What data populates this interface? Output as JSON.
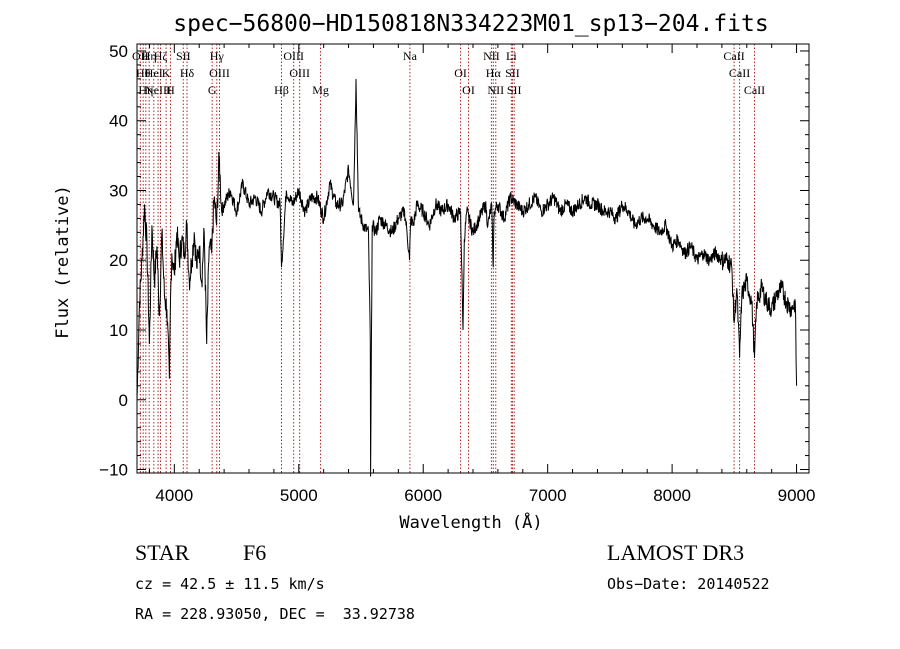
{
  "chart_data": {
    "type": "line",
    "title": "spec−56800−HD150818N334223M01_sp13−204.fits",
    "xlabel": "Wavelength (Å)",
    "ylabel": "Flux (relative)",
    "xlim": [
      3700,
      9100
    ],
    "ylim": [
      -10.5,
      51
    ],
    "xticks": [
      4000,
      5000,
      6000,
      7000,
      8000,
      9000
    ],
    "yticks": [
      -10,
      0,
      10,
      20,
      30,
      40,
      50
    ],
    "xtick_labels": [
      "4000",
      "5000",
      "6000",
      "7000",
      "8000",
      "9000"
    ],
    "ytick_labels": [
      "−10",
      "0",
      "10",
      "20",
      "30",
      "40",
      "50"
    ],
    "grid": false,
    "series": [
      {
        "name": "flux",
        "color": "#000000",
        "x": [
          3700,
          3720,
          3740,
          3760,
          3780,
          3800,
          3820,
          3840,
          3860,
          3880,
          3900,
          3920,
          3940,
          3960,
          3970,
          3980,
          4000,
          4020,
          4040,
          4060,
          4080,
          4100,
          4120,
          4140,
          4160,
          4180,
          4200,
          4220,
          4240,
          4260,
          4280,
          4300,
          4320,
          4340,
          4360,
          4380,
          4400,
          4450,
          4500,
          4550,
          4600,
          4650,
          4700,
          4750,
          4800,
          4850,
          4861,
          4900,
          4950,
          5000,
          5050,
          5100,
          5150,
          5200,
          5250,
          5300,
          5350,
          5400,
          5440,
          5460,
          5480,
          5520,
          5560,
          5575,
          5577,
          5590,
          5620,
          5650,
          5700,
          5750,
          5800,
          5850,
          5870,
          5890,
          5900,
          5920,
          5950,
          6000,
          6050,
          6100,
          6150,
          6200,
          6250,
          6300,
          6320,
          6330,
          6350,
          6400,
          6450,
          6500,
          6520,
          6550,
          6562,
          6570,
          6600,
          6650,
          6700,
          6750,
          6800,
          6850,
          6900,
          6950,
          7000,
          7050,
          7100,
          7150,
          7200,
          7250,
          7300,
          7350,
          7400,
          7450,
          7500,
          7550,
          7600,
          7650,
          7700,
          7750,
          7800,
          7850,
          7900,
          7950,
          8000,
          8050,
          8100,
          8150,
          8200,
          8250,
          8300,
          8350,
          8400,
          8450,
          8480,
          8498,
          8520,
          8542,
          8560,
          8600,
          8640,
          8662,
          8680,
          8720,
          8760,
          8800,
          8840,
          8880,
          8920,
          8960,
          8990,
          9000
        ],
        "values": [
          0,
          14,
          20,
          28,
          22,
          8,
          25,
          17,
          22,
          12,
          24,
          15,
          13,
          3,
          15,
          21,
          18,
          24,
          20,
          23,
          21,
          25,
          17,
          20,
          24,
          19,
          22,
          17,
          24,
          8,
          22,
          21,
          29,
          25,
          35,
          27,
          28,
          30,
          27,
          31,
          28,
          29,
          27,
          30,
          29,
          28,
          19,
          30,
          28,
          30,
          27,
          29,
          29,
          26,
          31,
          28,
          28,
          33,
          28,
          46,
          27,
          25,
          24,
          8,
          -11,
          25,
          24,
          26,
          25,
          24,
          26,
          27,
          24,
          20,
          26,
          25,
          28,
          27,
          25,
          28,
          27,
          28,
          26,
          27,
          10,
          23,
          27,
          24,
          26,
          28,
          25,
          28,
          19,
          27,
          28,
          26,
          29,
          28,
          27,
          28,
          29,
          27,
          28,
          29,
          27,
          28,
          27,
          28,
          29,
          28,
          28,
          27,
          27,
          26,
          28,
          27,
          25,
          26,
          26,
          25,
          24,
          25,
          22,
          23,
          21,
          22,
          20,
          21,
          20,
          21,
          20,
          20,
          19,
          11,
          16,
          6,
          15,
          17,
          14,
          6,
          14,
          16,
          14,
          13,
          15,
          16,
          14,
          13,
          14,
          2
        ]
      }
    ],
    "line_markers": [
      {
        "wl": 3727,
        "labels": [
          "OII",
          "OII"
        ]
      },
      {
        "wl": 3750,
        "labels": [
          "Hθ",
          "Hei"
        ]
      },
      {
        "wl": 3771,
        "labels": [
          "Hη"
        ]
      },
      {
        "wl": 3798,
        "labels": [
          "Hη"
        ]
      },
      {
        "wl": 3835,
        "labels": [
          "HeI"
        ]
      },
      {
        "wl": 3869,
        "labels": [
          "NeIII"
        ]
      },
      {
        "wl": 3889,
        "labels": [
          "Hζ"
        ]
      },
      {
        "wl": 3934,
        "labels": [
          "K"
        ]
      },
      {
        "wl": 3969,
        "labels": [
          "H"
        ]
      },
      {
        "wl": 4072,
        "labels": [
          "SII"
        ]
      },
      {
        "wl": 4102,
        "labels": [
          "Hδ"
        ]
      },
      {
        "wl": 4304,
        "labels": [
          "G"
        ]
      },
      {
        "wl": 4341,
        "labels": [
          "Hγ"
        ]
      },
      {
        "wl": 4363,
        "labels": [
          "OIII"
        ]
      },
      {
        "wl": 4861,
        "labels": [
          "Hβ"
        ]
      },
      {
        "wl": 4959,
        "labels": [
          "OIII"
        ]
      },
      {
        "wl": 5007,
        "labels": [
          "OIII"
        ]
      },
      {
        "wl": 5175,
        "labels": [
          "Mg"
        ]
      },
      {
        "wl": 5893,
        "labels": [
          "Na"
        ]
      },
      {
        "wl": 6300,
        "labels": [
          "OI"
        ]
      },
      {
        "wl": 6364,
        "labels": [
          "OI"
        ]
      },
      {
        "wl": 6548,
        "labels": [
          "NII"
        ]
      },
      {
        "wl": 6563,
        "labels": [
          "Hα"
        ]
      },
      {
        "wl": 6583,
        "labels": [
          "NII"
        ]
      },
      {
        "wl": 6708,
        "labels": [
          "Li"
        ]
      },
      {
        "wl": 6717,
        "labels": [
          "SII"
        ]
      },
      {
        "wl": 6731,
        "labels": [
          "SII"
        ]
      },
      {
        "wl": 8498,
        "labels": [
          "CaII"
        ]
      },
      {
        "wl": 8542,
        "labels": [
          "CaII"
        ]
      },
      {
        "wl": 8662,
        "labels": [
          "CaII"
        ]
      }
    ],
    "marker_color": "#b22222"
  },
  "info": {
    "object_class": "STAR",
    "subclass": "F6",
    "survey": "LAMOST DR3",
    "redshift_text": "cz = 42.5 ± 11.5 km/s",
    "obs_date_text": "Obs−Date: 20140522",
    "coords_text": "RA = 228.93050, DEC =  33.92738"
  }
}
